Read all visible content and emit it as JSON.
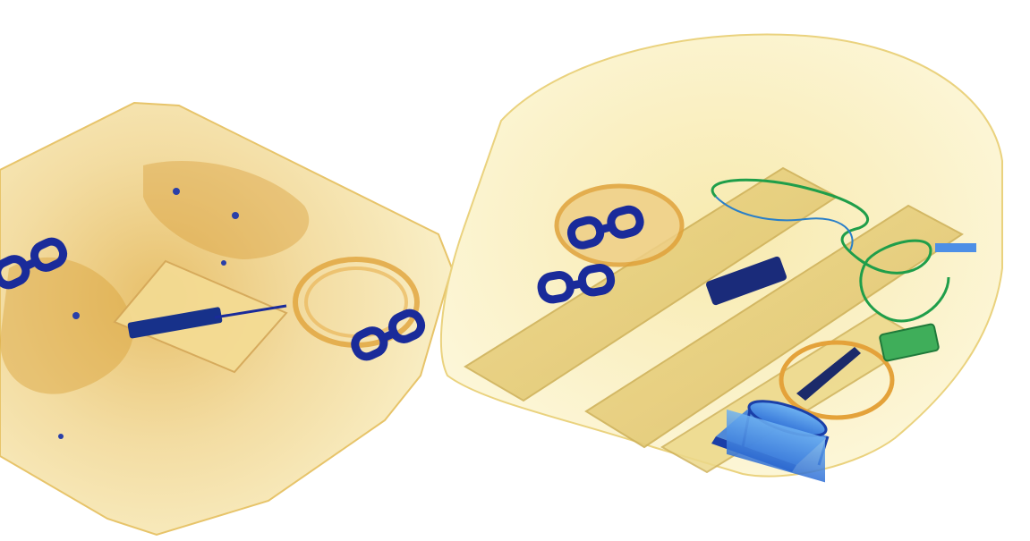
{
  "scene": {
    "kind": "x-ray-baggage-scan",
    "colors": {
      "background": "#ffffff",
      "organic_light": "#f7eba8",
      "organic_mid": "#ecd27a",
      "organic_dark": "#d9a43a",
      "organic_edge": "#d6a85a",
      "metal_blue": "#1a2b9a",
      "metal_light_blue": "#4d8fe6",
      "inorganic_green": "#1f9e4a",
      "pcb_green": "#3fae5a"
    },
    "objects": [
      {
        "name": "left-bag",
        "material": "organic"
      },
      {
        "name": "right-bag",
        "material": "organic"
      },
      {
        "name": "cylinder-container",
        "material": "metal"
      },
      {
        "name": "coiled-cable",
        "material": "inorganic"
      },
      {
        "name": "circuit-board",
        "material": "mixed"
      }
    ]
  }
}
